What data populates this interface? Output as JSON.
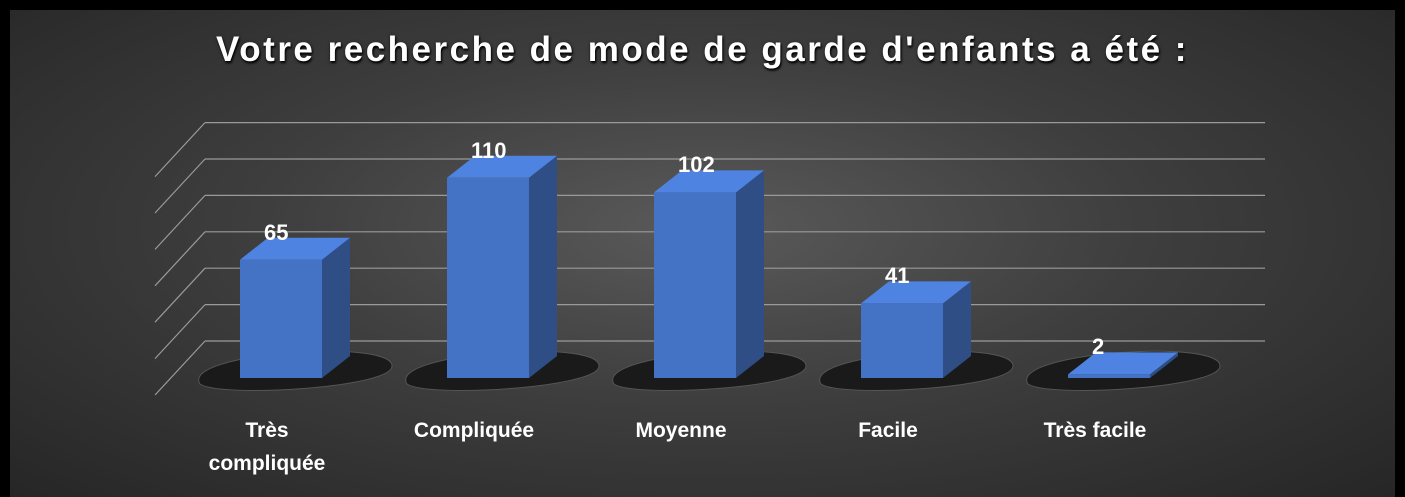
{
  "chart_data": {
    "type": "bar3d",
    "title": "Votre recherche de mode de garde d'enfants a été :",
    "categories": [
      "Très compliquée",
      "Compliquée",
      "Moyenne",
      "Facile",
      "Très facile"
    ],
    "values": [
      65,
      110,
      102,
      41,
      2
    ],
    "color": "#4472c4",
    "ylim": [
      0,
      120
    ],
    "yticks": [
      0,
      20,
      40,
      60,
      80,
      100,
      120
    ],
    "grid": true
  }
}
